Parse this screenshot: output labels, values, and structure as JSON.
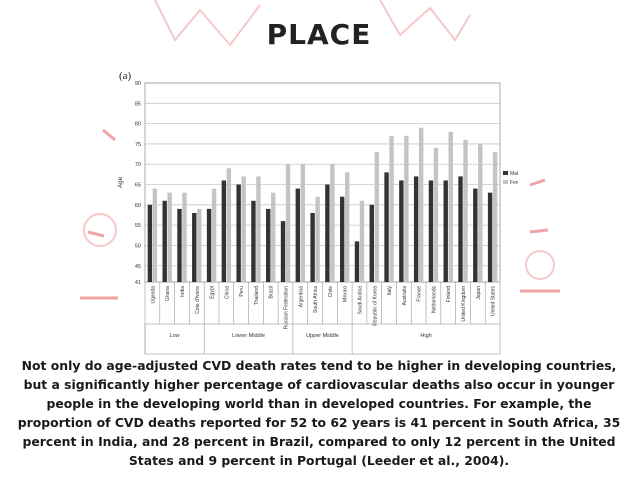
{
  "title": "PLACE",
  "panel_label": "(a)",
  "caption": "Not only do age-adjusted CVD death rates tend to be higher in developing countries, but a significantly higher percentage of cardiovascular deaths also occur in younger people in the developing world than in developed countries. For example, the proportion of CVD deaths reported for 52 to 62 years is 41 percent in South Africa, 35 percent in India, and 28 percent in Brazil, compared to only 12 percent in the United States and 9 percent in Portugal (Leeder et al., 2004).",
  "colors": {
    "males": "#333333",
    "females": "#c4c4c4",
    "decoration": "#ef9a9a"
  },
  "chart_data": {
    "type": "bar",
    "ylabel": "Age",
    "ylim": [
      41,
      90
    ],
    "yticks": [
      41,
      45,
      50,
      55,
      60,
      65,
      70,
      75,
      80,
      85,
      90
    ],
    "grid": true,
    "legend_position": "right",
    "categories": [
      "Uganda",
      "Ghana",
      "India",
      "Cote d'Ivoire",
      "Egypt",
      "China",
      "Peru",
      "Thailand",
      "Brazil",
      "Russian Federation",
      "Argentina",
      "South Africa",
      "Chile",
      "Mexico",
      "Saudi Arabia",
      "Republic of Korea",
      "Italy",
      "Australia",
      "France",
      "Netherlands",
      "Finland",
      "United Kingdom",
      "Japan",
      "United States"
    ],
    "groups": [
      {
        "name": "Low",
        "count": 4
      },
      {
        "name": "Lower Middle",
        "count": 6
      },
      {
        "name": "Upper Middle",
        "count": 4
      },
      {
        "name": "High",
        "count": 10
      }
    ],
    "series": [
      {
        "name": "Males",
        "values": [
          60,
          61,
          59,
          58,
          59,
          66,
          65,
          61,
          59,
          56,
          64,
          58,
          65,
          62,
          51,
          60,
          68,
          66,
          67,
          66,
          66,
          67,
          64,
          63
        ]
      },
      {
        "name": "Females",
        "values": [
          64,
          63,
          63,
          59,
          64,
          69,
          67,
          67,
          63,
          70,
          70,
          62,
          70,
          68,
          61,
          73,
          77,
          77,
          79,
          74,
          78,
          76,
          75,
          73
        ]
      }
    ]
  }
}
